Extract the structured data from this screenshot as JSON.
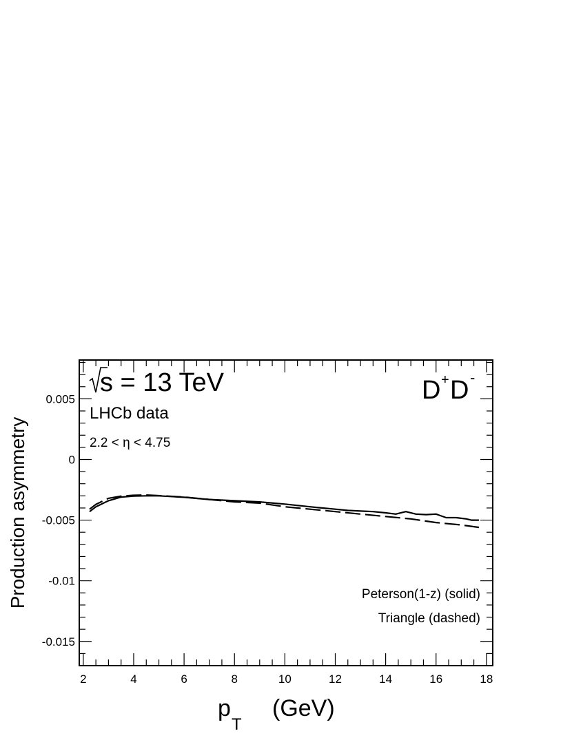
{
  "chart_data": {
    "type": "line",
    "xlabel": "p",
    "xlabel_sub": "T",
    "xlabel_unit": "(GeV)",
    "ylabel": "Production asymmetry",
    "xlim": [
      1.84,
      18.25
    ],
    "ylim": [
      -0.017,
      0.0082
    ],
    "x_ticks": [
      2,
      4,
      6,
      8,
      10,
      12,
      14,
      16,
      18
    ],
    "x_tick_labels": [
      "2",
      "4",
      "6",
      "8",
      "10",
      "12",
      "14",
      "16",
      "18"
    ],
    "y_ticks": [
      0.005,
      0,
      -0.005,
      -0.01,
      -0.015
    ],
    "y_tick_labels": [
      "0.005",
      "0",
      "-0.005",
      "-0.01",
      "-0.015"
    ],
    "grid": false,
    "annotations": {
      "energy": "s = 13 TeV",
      "experiment": "LHCb data",
      "eta_range": "2.2 < η < 4.75",
      "particle_base": "D",
      "particle_sup1": "+",
      "particle_sup2": "-"
    },
    "legend_placement": "bottom-right",
    "series": [
      {
        "name": "Peterson(1-z) (solid)",
        "style": "solid",
        "x": [
          2.25,
          2.5,
          3,
          3.5,
          4,
          4.5,
          5,
          6,
          7,
          8,
          9,
          10,
          11,
          11.5,
          12,
          12.5,
          13,
          13.5,
          14,
          14.4,
          14.8,
          15.2,
          15.6,
          16,
          16.4,
          16.8,
          17.2,
          17.4,
          17.7
        ],
        "y": [
          -0.0043,
          -0.0039,
          -0.0034,
          -0.0031,
          -0.00302,
          -0.003,
          -0.003,
          -0.00312,
          -0.0033,
          -0.0034,
          -0.0035,
          -0.00368,
          -0.0039,
          -0.004,
          -0.0041,
          -0.0042,
          -0.00425,
          -0.0043,
          -0.0044,
          -0.0045,
          -0.0043,
          -0.0045,
          -0.00455,
          -0.0045,
          -0.0048,
          -0.0048,
          -0.0049,
          -0.005,
          -0.005
        ]
      },
      {
        "name": "Triangle (dashed)",
        "style": "dashed",
        "x": [
          2.25,
          2.5,
          3,
          3.5,
          4,
          4.5,
          5,
          6,
          7,
          8,
          9,
          10,
          11,
          12,
          13,
          14,
          15,
          16,
          17,
          17.7
        ],
        "y": [
          -0.0041,
          -0.0037,
          -0.0032,
          -0.00302,
          -0.00295,
          -0.00293,
          -0.00298,
          -0.0031,
          -0.0033,
          -0.0035,
          -0.0036,
          -0.0039,
          -0.0041,
          -0.0043,
          -0.0045,
          -0.0047,
          -0.0049,
          -0.0052,
          -0.0054,
          -0.0056
        ]
      }
    ]
  }
}
